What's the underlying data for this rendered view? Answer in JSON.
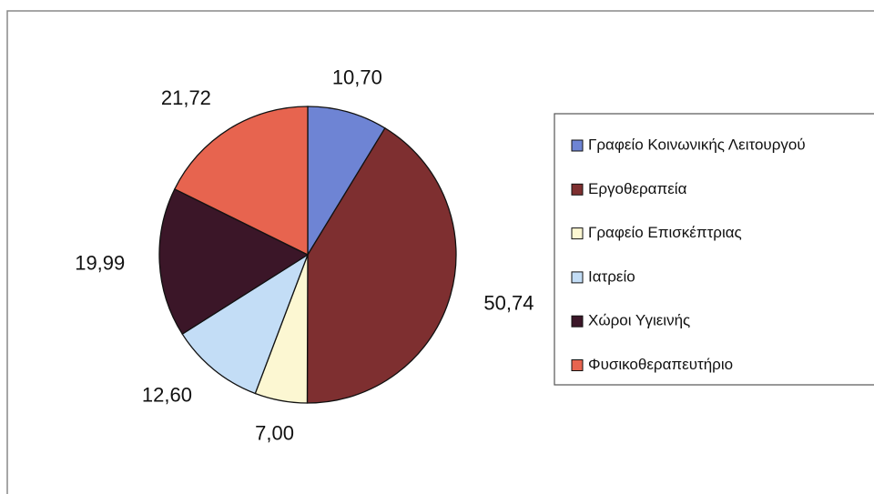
{
  "chart_data": {
    "type": "pie",
    "categories": [
      "Γραφείο Κοινωνικής Λειτουργού",
      "Εργοθεραπεία",
      "Γραφείο Επισκέπτριας",
      "Ιατρείο",
      "Χώροι Υγιεινής",
      "Φυσικοθεραπευτήριο"
    ],
    "values": [
      10.7,
      50.74,
      7.0,
      12.6,
      19.99,
      21.72
    ],
    "value_labels": [
      "10,70",
      "50,74",
      "7,00",
      "12,60",
      "19,99",
      "21,72"
    ],
    "colors": [
      "#6e84d4",
      "#7e2f30",
      "#fcf7d2",
      "#c3ddf6",
      "#3b1628",
      "#e7644f"
    ],
    "legend": "right"
  }
}
